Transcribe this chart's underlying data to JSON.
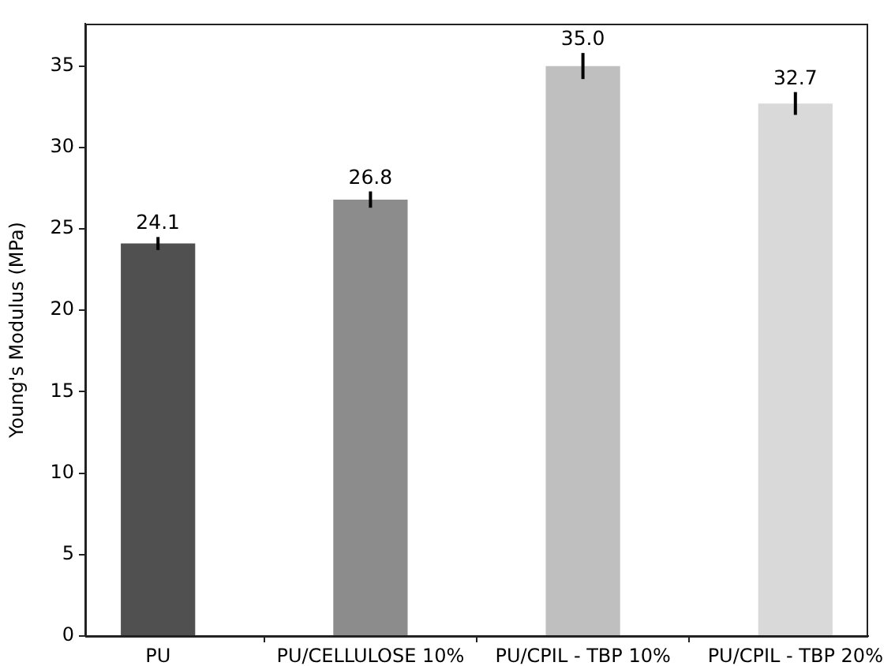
{
  "chart_data": {
    "type": "bar",
    "ylabel": "Young's Modulus (MPa)",
    "categories": [
      "PU",
      "PU/CELLULOSE 10%",
      "PU/CPIL - TBP 10%",
      "PU/CPIL - TBP 20%"
    ],
    "values": [
      24.1,
      26.8,
      35.0,
      32.7
    ],
    "colors": [
      "#505050",
      "#8c8c8c",
      "#bfbfbf",
      "#d9d9d9"
    ],
    "errors": [
      0.4,
      0.5,
      0.8,
      0.7
    ],
    "value_labels": [
      "24.1",
      "26.8",
      "35.0",
      "32.7"
    ],
    "ylim": [
      0,
      37.6
    ],
    "yticks": [
      0,
      5,
      10,
      15,
      20,
      25,
      30,
      35
    ],
    "grid": false
  }
}
